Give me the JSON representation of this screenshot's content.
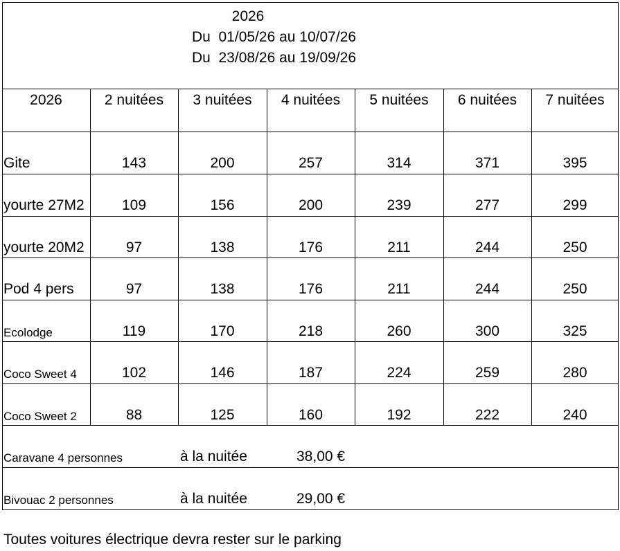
{
  "header": {
    "year": "2026",
    "periods": [
      "Du  01/05/26 au 10/07/26",
      "Du  23/08/26 au 19/09/26"
    ]
  },
  "table": {
    "columns": [
      "2026",
      "2 nuitées",
      "3 nuitées",
      "4 nuitées",
      "5 nuitées",
      "6 nuitées",
      "7 nuitées"
    ],
    "rows": [
      [
        "Gite",
        143,
        200,
        257,
        314,
        371,
        395
      ],
      [
        "yourte 27M2",
        109,
        156,
        200,
        239,
        277,
        299
      ],
      [
        "yourte 20M2",
        97,
        138,
        176,
        211,
        244,
        250
      ],
      [
        "Pod 4 pers",
        97,
        138,
        176,
        211,
        244,
        250
      ],
      [
        "Ecolodge",
        119,
        170,
        218,
        260,
        300,
        325
      ],
      [
        "Coco Sweet 4",
        102,
        146,
        187,
        224,
        259,
        280
      ],
      [
        "Coco Sweet 2",
        88,
        125,
        160,
        192,
        222,
        240
      ]
    ]
  },
  "extras": [
    {
      "label": "Caravane 4 personnes",
      "unit": "à la nuitée",
      "price": "38,00 €"
    },
    {
      "label": "Bivouac 2 personnes",
      "unit": "à la nuitée",
      "price": "29,00 €"
    }
  ],
  "footer": "Toutes voitures électrique devra rester sur le parking"
}
